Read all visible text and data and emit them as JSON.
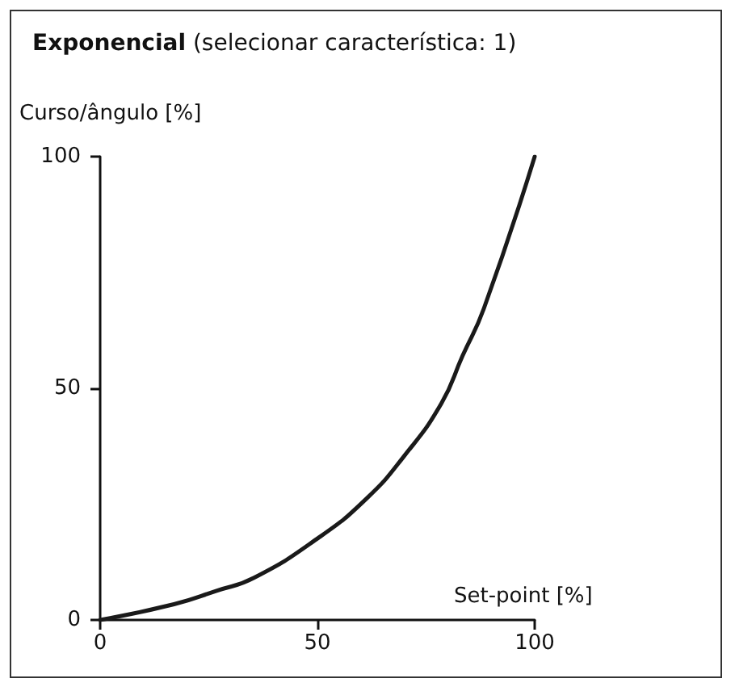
{
  "chart_data": {
    "type": "line",
    "title": "Exponencial (selecionar característica: 1)",
    "ylabel": "Curso/ângulo [%]",
    "xlabel": "Set-point [%]",
    "x": [
      0,
      17,
      26.8,
      35.4,
      50.2,
      61.3,
      69.9,
      78.5,
      83.4,
      88.3,
      100
    ],
    "series": [
      {
        "color": "#1a1a1a",
        "values": [
          0,
          3.4,
          6.3,
          9.1,
          17.7,
          26.2,
          35.3,
          46.7,
          57,
          67.2,
          100
        ]
      }
    ],
    "xlim": [
      0,
      100
    ],
    "xticks": [
      0,
      50,
      100
    ],
    "ylim": [
      0,
      100
    ],
    "yticks": [
      0,
      50,
      100
    ],
    "grid": false,
    "marker": "none",
    "line_style": "solid"
  }
}
